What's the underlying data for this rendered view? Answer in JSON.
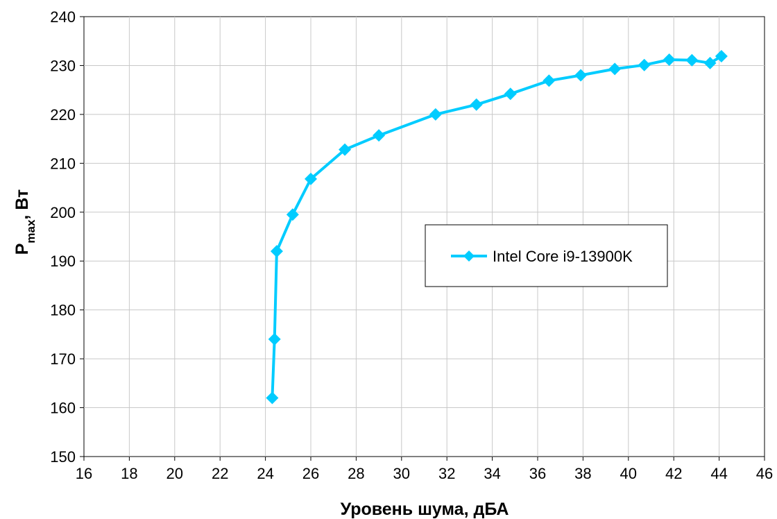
{
  "chart_data": {
    "type": "line",
    "title": "",
    "xlabel": "Уровень шума, дБА",
    "ylabel": {
      "main": "P",
      "subscript": "max",
      "suffix": ", Вт"
    },
    "xlim": [
      16,
      46
    ],
    "ylim": [
      150,
      240
    ],
    "xticks": [
      16,
      18,
      20,
      22,
      24,
      26,
      28,
      30,
      32,
      34,
      36,
      38,
      40,
      42,
      44,
      46
    ],
    "yticks": [
      150,
      160,
      170,
      180,
      190,
      200,
      210,
      220,
      230,
      240
    ],
    "grid": true,
    "legend_position": "center-right",
    "series": [
      {
        "name": "Intel Core i9-13900K",
        "color": "#00ccff",
        "marker": "diamond",
        "x": [
          24.3,
          24.4,
          24.5,
          25.2,
          26.0,
          27.5,
          29.0,
          31.5,
          33.3,
          34.8,
          36.5,
          37.9,
          39.4,
          40.7,
          41.8,
          42.8,
          43.6,
          44.1
        ],
        "y": [
          162,
          174,
          192,
          199.5,
          206.8,
          212.8,
          215.7,
          220,
          222,
          224.2,
          226.9,
          228,
          229.3,
          230.1,
          231.2,
          231.1,
          230.5,
          231.9
        ]
      }
    ]
  }
}
